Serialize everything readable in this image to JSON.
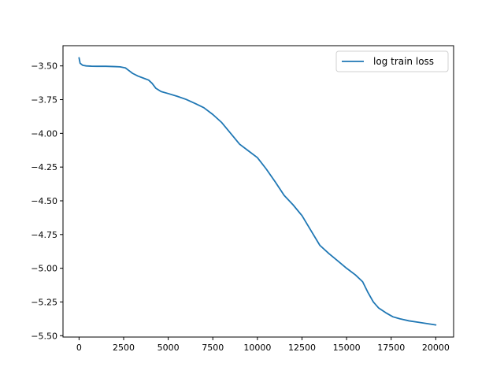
{
  "chart_data": {
    "type": "line",
    "title": "",
    "xlabel": "",
    "ylabel": "",
    "xlim": [
      -900,
      21000
    ],
    "ylim": [
      -5.51,
      -3.35
    ],
    "xticks": [
      0,
      2500,
      5000,
      7500,
      10000,
      12500,
      15000,
      17500,
      20000
    ],
    "xtick_labels": [
      "0",
      "2500",
      "5000",
      "7500",
      "10000",
      "12500",
      "15000",
      "17500",
      "20000"
    ],
    "yticks": [
      -3.5,
      -3.75,
      -4.0,
      -4.25,
      -4.5,
      -4.75,
      -5.0,
      -5.25,
      -5.5
    ],
    "ytick_labels": [
      "−3.50",
      "−3.75",
      "−4.00",
      "−4.25",
      "−4.50",
      "−4.75",
      "−5.00",
      "−5.25",
      "−5.50"
    ],
    "grid": false,
    "legend_position": "top-right",
    "series": [
      {
        "name": "log train loss",
        "color": "#1f77b4",
        "x": [
          0,
          60,
          200,
          400,
          700,
          1000,
          1500,
          2000,
          2300,
          2600,
          2800,
          3000,
          3300,
          3600,
          3900,
          4100,
          4300,
          4600,
          5000,
          5500,
          6000,
          6500,
          7000,
          7500,
          8000,
          8500,
          9000,
          9500,
          10000,
          10500,
          11000,
          11500,
          12000,
          12500,
          13000,
          13500,
          14000,
          14500,
          15000,
          15500,
          15900,
          16200,
          16500,
          16800,
          17200,
          17600,
          18000,
          18500,
          19000,
          19500,
          20000
        ],
        "y": [
          -3.44,
          -3.48,
          -3.495,
          -3.5,
          -3.502,
          -3.503,
          -3.503,
          -3.505,
          -3.507,
          -3.515,
          -3.535,
          -3.555,
          -3.575,
          -3.59,
          -3.605,
          -3.63,
          -3.665,
          -3.69,
          -3.705,
          -3.725,
          -3.748,
          -3.778,
          -3.81,
          -3.86,
          -3.92,
          -4.0,
          -4.08,
          -4.13,
          -4.18,
          -4.265,
          -4.36,
          -4.46,
          -4.53,
          -4.61,
          -4.72,
          -4.83,
          -4.89,
          -4.945,
          -5.0,
          -5.05,
          -5.1,
          -5.18,
          -5.25,
          -5.295,
          -5.33,
          -5.36,
          -5.375,
          -5.39,
          -5.4,
          -5.41,
          -5.42
        ]
      }
    ]
  }
}
